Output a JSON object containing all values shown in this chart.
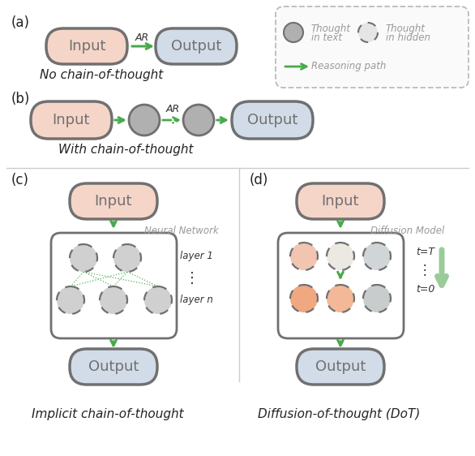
{
  "bg_color": "#ffffff",
  "input_color": "#f5d5c8",
  "output_color": "#d2dce8",
  "thought_solid_color": "#b0b0b0",
  "thought_hidden_color": "#d8d8d8",
  "node_border_color": "#707070",
  "green": "#4aaa4a",
  "green_light": "#99cc99",
  "label_color": "#999999",
  "legend_border": "#bbbbbb",
  "caption_color": "#222222",
  "diff_top_colors": [
    "#f2c5b0",
    "#ece8e2",
    "#d0d5d8"
  ],
  "diff_bot_colors": [
    "#f0a880",
    "#f2b898",
    "#c8cccc"
  ],
  "implicit_color": "#d0d0d0",
  "title_a": "(a)",
  "title_b": "(b)",
  "title_c": "(c)",
  "title_d": "(d)",
  "caption_a": "No chain-of-thought",
  "caption_b": "With chain-of-thought",
  "caption_c": "Implicit chain-of-thought",
  "caption_d": "Diffusion-of-thought (DoT)"
}
